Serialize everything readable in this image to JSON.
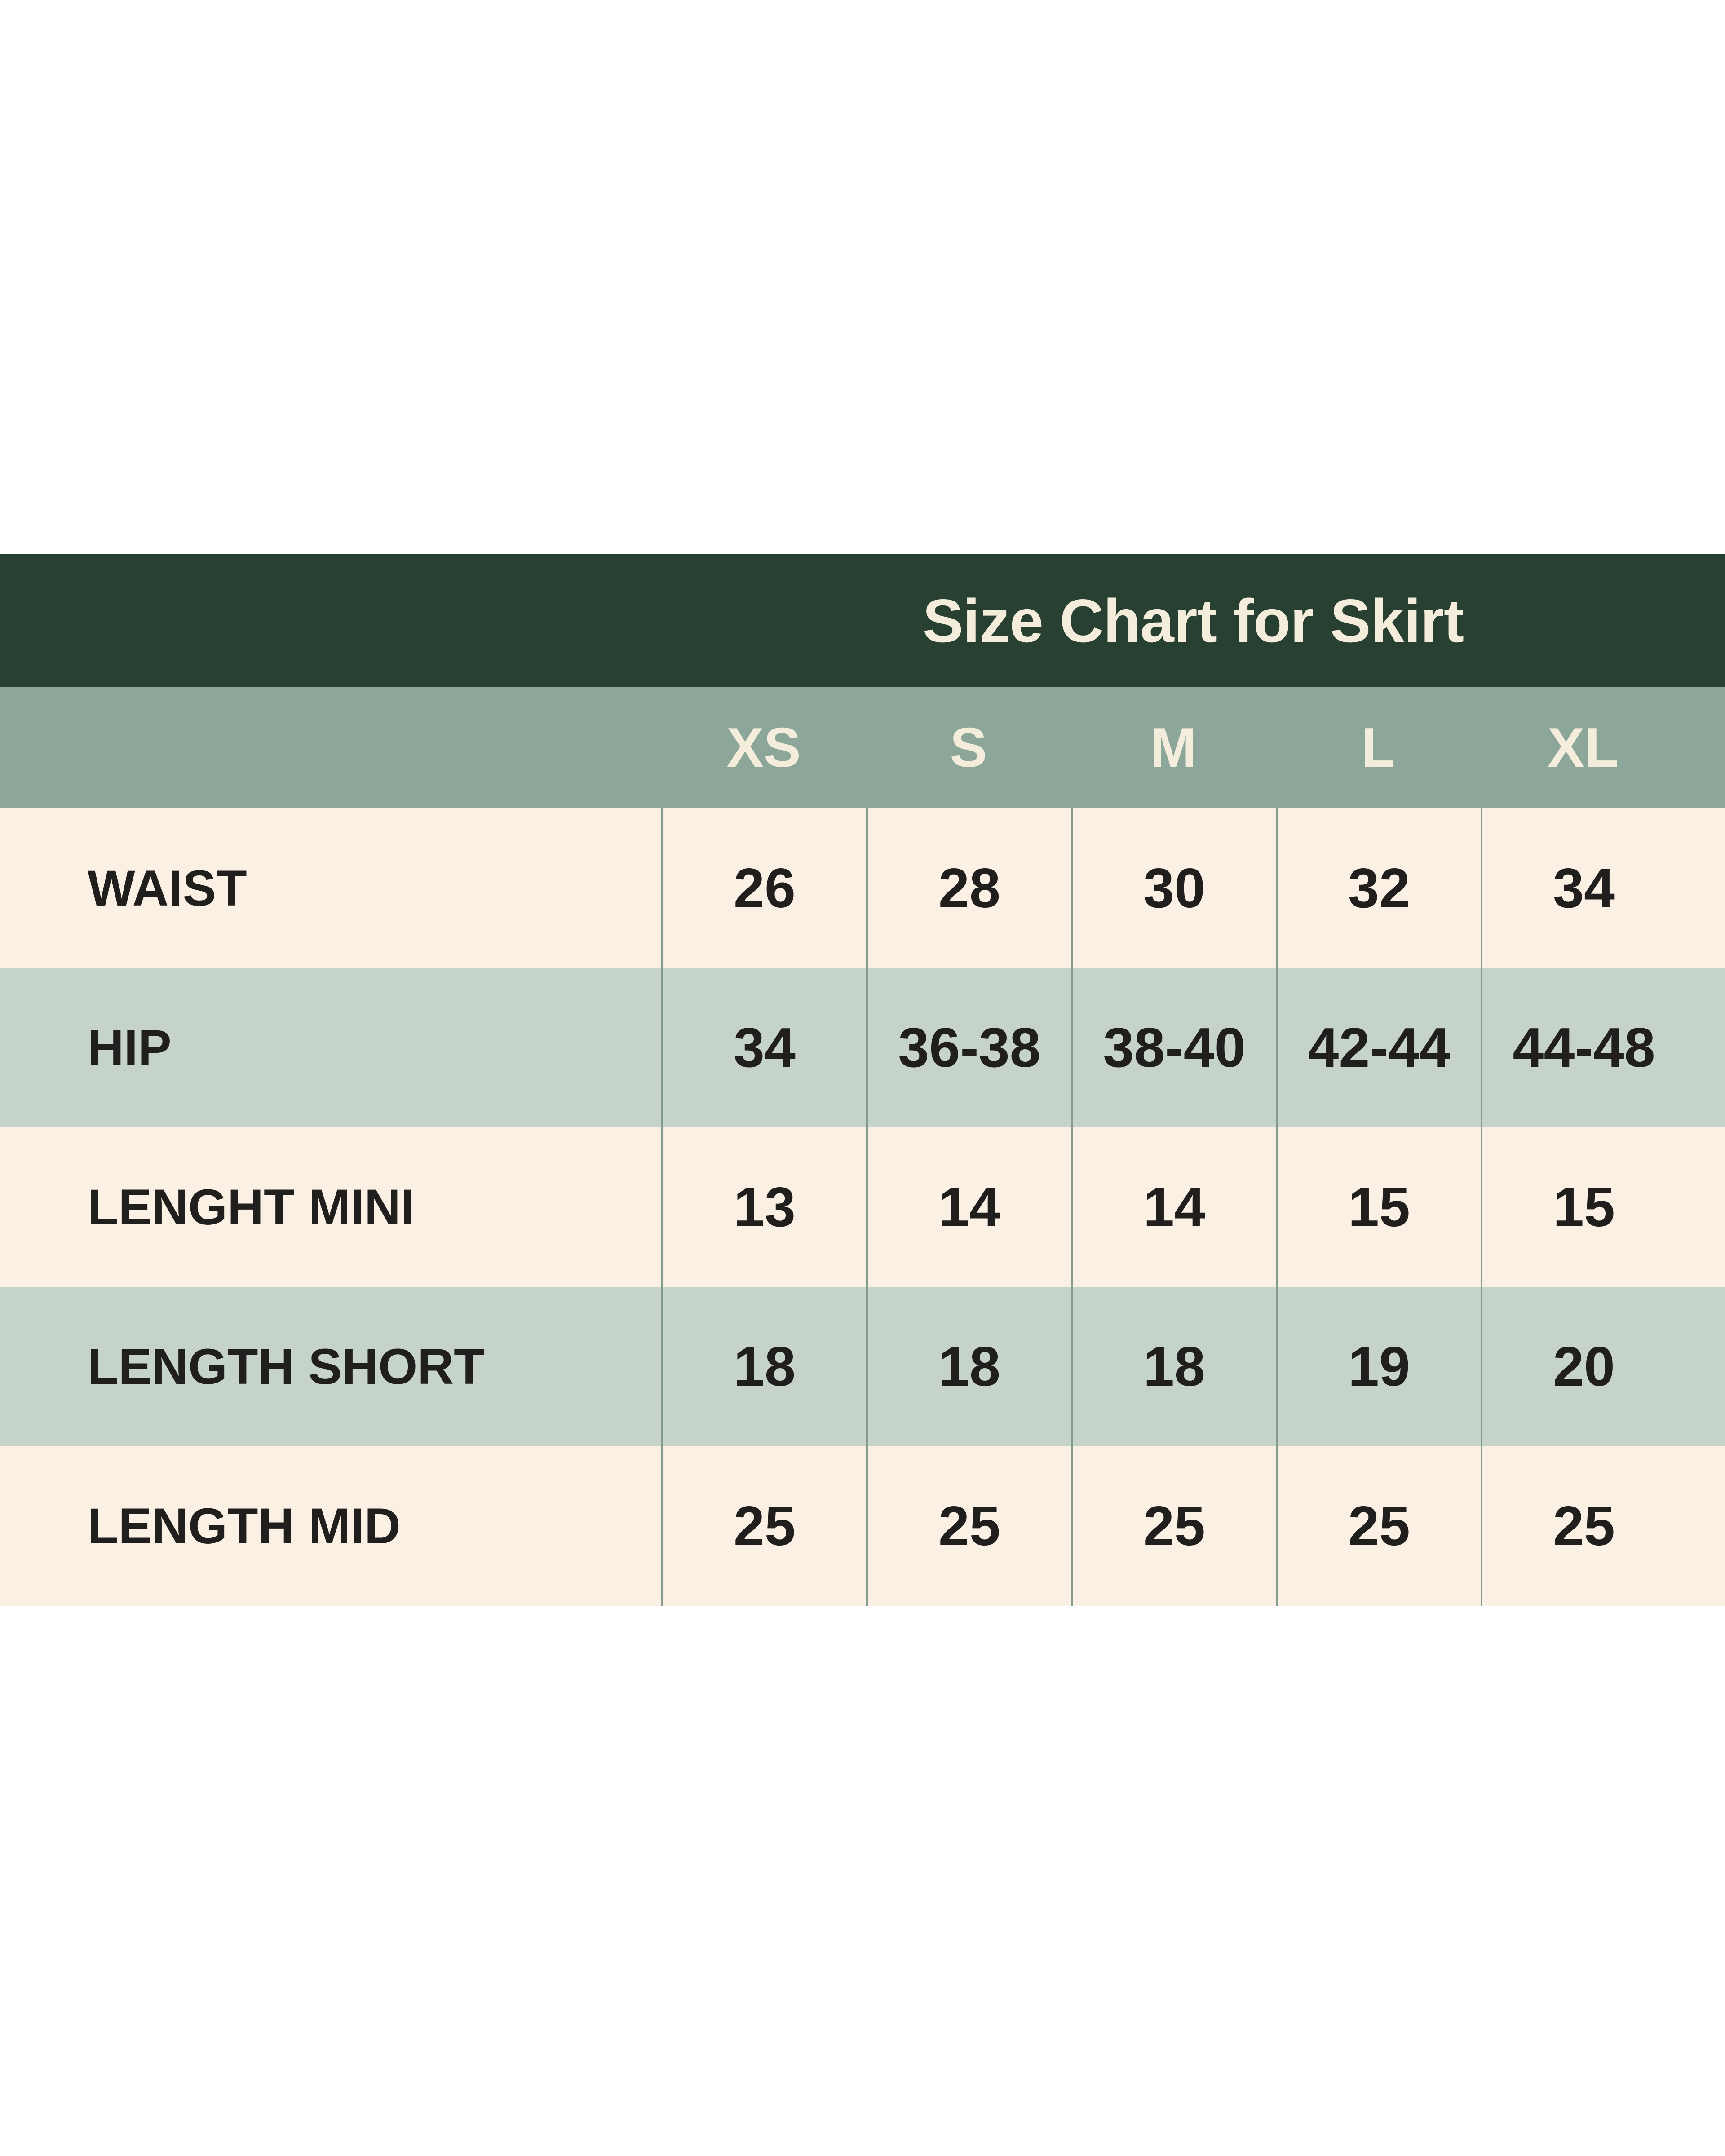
{
  "table": {
    "title": "Size Chart for Skirt",
    "columns": [
      "XS",
      "S",
      "M",
      "L",
      "XL"
    ],
    "rows": [
      {
        "label": "WAIST",
        "values": [
          "26",
          "28",
          "30",
          "32",
          "34"
        ]
      },
      {
        "label": "HIP",
        "values": [
          "34",
          "36-38",
          "38-40",
          "42-44",
          "44-48"
        ]
      },
      {
        "label": "LENGHT MINI",
        "values": [
          "13",
          "14",
          "14",
          "15",
          "15"
        ]
      },
      {
        "label": "LENGTH SHORT",
        "values": [
          "18",
          "18",
          "18",
          "19",
          "20"
        ]
      },
      {
        "label": "LENGTH MID",
        "values": [
          "25",
          "25",
          "25",
          "25",
          "25"
        ]
      }
    ]
  },
  "chart_data": {
    "type": "table",
    "title": "Size Chart for Skirt",
    "categories": [
      "XS",
      "S",
      "M",
      "L",
      "XL"
    ],
    "series": [
      {
        "name": "WAIST",
        "values": [
          "26",
          "28",
          "30",
          "32",
          "34"
        ]
      },
      {
        "name": "HIP",
        "values": [
          "34",
          "36-38",
          "38-40",
          "42-44",
          "44-48"
        ]
      },
      {
        "name": "LENGHT MINI",
        "values": [
          "13",
          "14",
          "14",
          "15",
          "15"
        ]
      },
      {
        "name": "LENGTH SHORT",
        "values": [
          "18",
          "18",
          "18",
          "19",
          "20"
        ]
      },
      {
        "name": "LENGTH MID",
        "values": [
          "25",
          "25",
          "25",
          "25",
          "25"
        ]
      }
    ],
    "layout_hints": {
      "header_position": "top",
      "label_column": "left",
      "grid": "vertical-separators-only"
    }
  },
  "colors": {
    "dark_green": "#284031",
    "sage": "#8ca79a",
    "light_sage": "#c5d3ca",
    "cream": "#faf1e4",
    "line": "#849c8e",
    "text_dark": "#211e1e",
    "text_cream": "#f5eddc",
    "page_bg": "#ffffff"
  }
}
